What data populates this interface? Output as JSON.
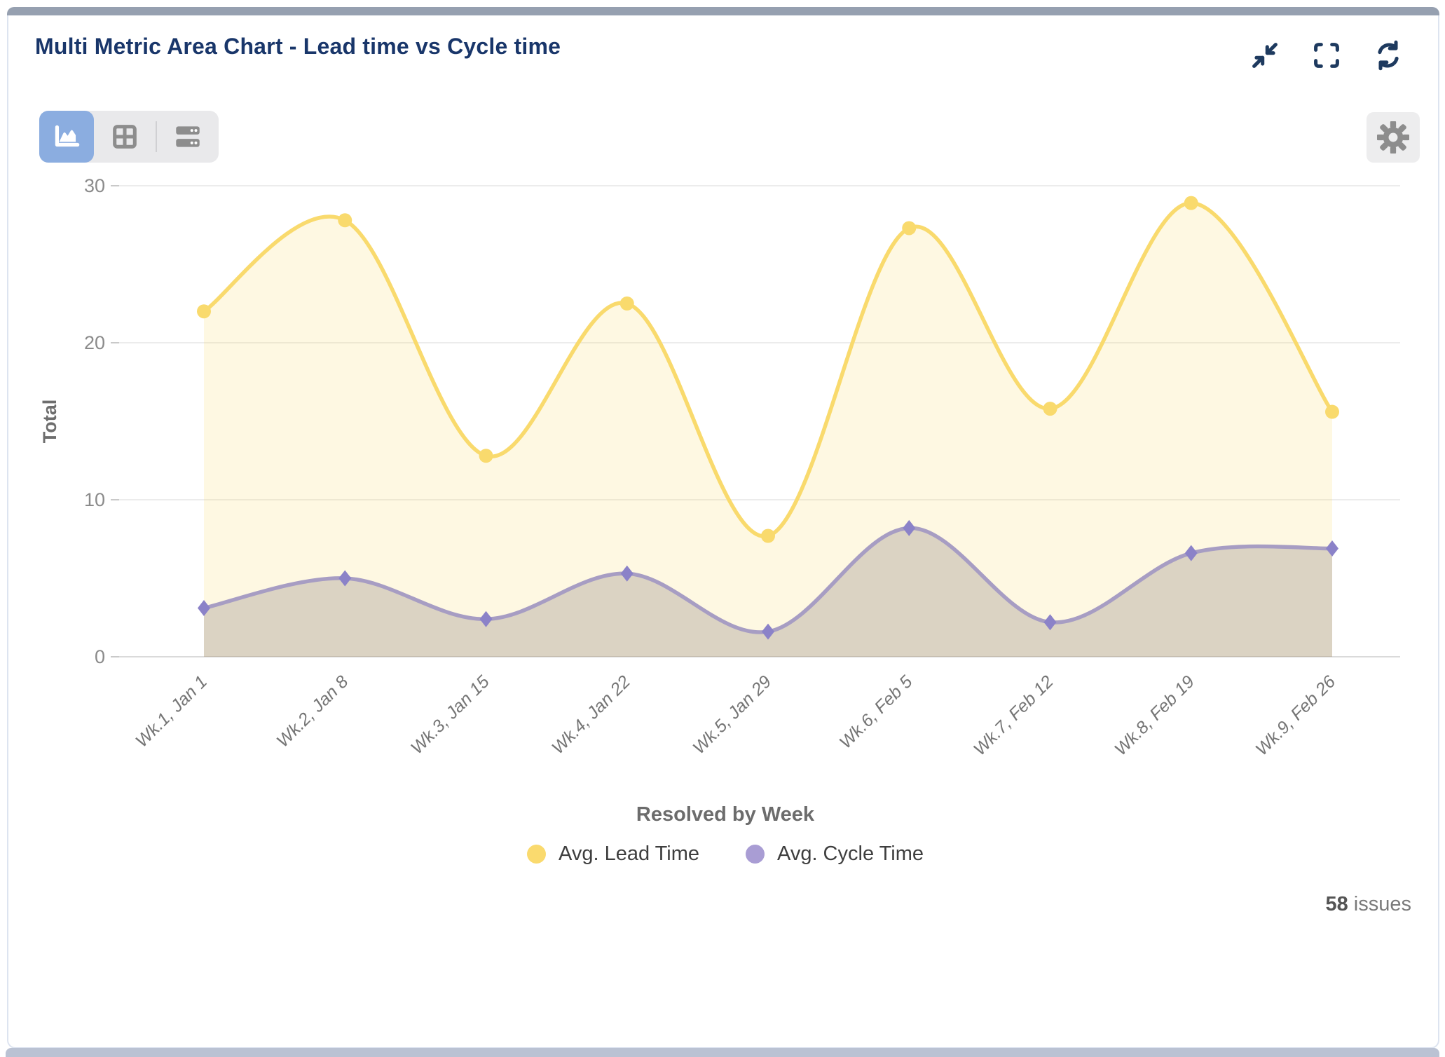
{
  "card": {
    "title": "Multi Metric Area Chart - Lead time vs Cycle time",
    "header_actions": [
      {
        "id": "collapse",
        "icon": "collapse-icon"
      },
      {
        "id": "fullscreen",
        "icon": "fullscreen-icon"
      },
      {
        "id": "refresh",
        "icon": "refresh-icon"
      }
    ],
    "view_toggle": [
      {
        "id": "area-chart-view",
        "icon": "area-chart-icon",
        "active": true
      },
      {
        "id": "table-view",
        "icon": "table-icon",
        "active": false
      },
      {
        "id": "rows-view",
        "icon": "rows-icon",
        "active": false
      }
    ],
    "settings_icon": "gear-icon",
    "footer": {
      "count": "58",
      "label": "issues"
    }
  },
  "colors": {
    "title_navy": "#19366a",
    "header_icon_navy": "#1e3a5f",
    "topbar_gray_blue": "#96a0b0",
    "active_toggle_blue": "#8bade0",
    "toolbar_icon_gray": "#8d8d8d",
    "lead_yellow": "#f9da6d",
    "lead_fill": "rgba(250,220,110,0.20)",
    "cycle_purple_line": "#a79dc3",
    "cycle_marker": "#8b82c8",
    "cycle_fill": "rgba(115,100,105,0.25)",
    "legend_cycle_dot": "#a99dd4",
    "axis_text": "#8b8b8b",
    "gridline": "#ececec"
  },
  "chart_data": {
    "type": "area",
    "title": "Multi Metric Area Chart - Lead time vs Cycle time",
    "categories": [
      "Wk.1, Jan 1",
      "Wk.2, Jan 8",
      "Wk.3, Jan 15",
      "Wk.4, Jan 22",
      "Wk.5, Jan 29",
      "Wk.6, Feb 5",
      "Wk.7, Feb 12",
      "Wk.8, Feb 19",
      "Wk.9, Feb 26"
    ],
    "series": [
      {
        "name": "Avg. Lead Time",
        "marker": "circle",
        "color": "#f9da6d",
        "fill": "rgba(250,220,110,0.20)",
        "legend_color": "#fada6e",
        "values": [
          22.0,
          27.8,
          12.8,
          22.5,
          7.7,
          27.3,
          15.8,
          28.9,
          15.6
        ]
      },
      {
        "name": "Avg. Cycle Time",
        "marker": "diamond",
        "color": "#a79dc3",
        "fill": "rgba(115,100,105,0.25)",
        "legend_color": "#a99dd4",
        "values": [
          3.1,
          5.0,
          2.4,
          5.3,
          1.6,
          8.2,
          2.2,
          6.6,
          6.9
        ]
      }
    ],
    "xlabel": "Resolved by Week",
    "ylabel": "Total",
    "yticks": [
      0,
      10,
      20,
      30
    ],
    "ylim": [
      0,
      30
    ],
    "grid": true,
    "smooth": true,
    "legend_position": "bottom",
    "footer_total": "58 issues"
  }
}
